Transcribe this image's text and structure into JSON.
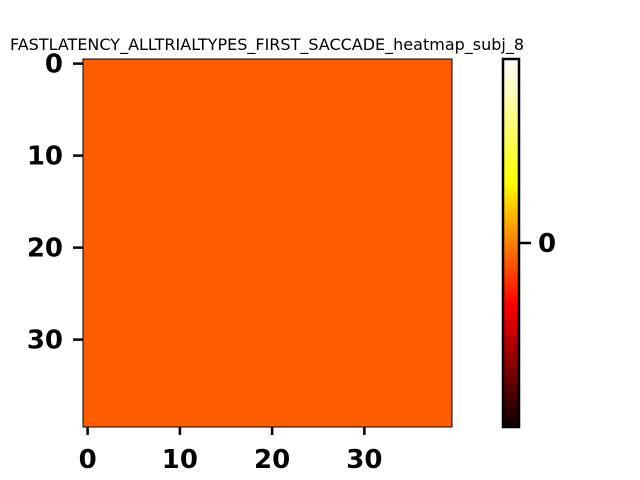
{
  "chart_data": {
    "type": "heatmap",
    "title": "FASTLATENCY_ALLTRIALTYPES_FIRST_SACCADE_heatmap_subj_8",
    "xlabel": "",
    "ylabel": "",
    "rows": 40,
    "cols": 40,
    "fill_value": 0,
    "xlim": [
      -0.5,
      39.5
    ],
    "ylim": [
      39.5,
      -0.5
    ],
    "x_ticks": [
      0,
      10,
      20,
      30
    ],
    "y_ticks": [
      0,
      10,
      20,
      30
    ],
    "x_tick_labels": [
      "0",
      "10",
      "20",
      "30"
    ],
    "y_tick_labels": [
      "0",
      "10",
      "20",
      "30"
    ],
    "colormap": "hot",
    "cell_color": "#ff5e00",
    "colorbar": {
      "ticks": [
        0
      ],
      "tick_labels": [
        "0"
      ],
      "stops": [
        "#0a0000",
        "#ff0000",
        "#ffff00",
        "#ffffff"
      ]
    },
    "grid": false
  }
}
